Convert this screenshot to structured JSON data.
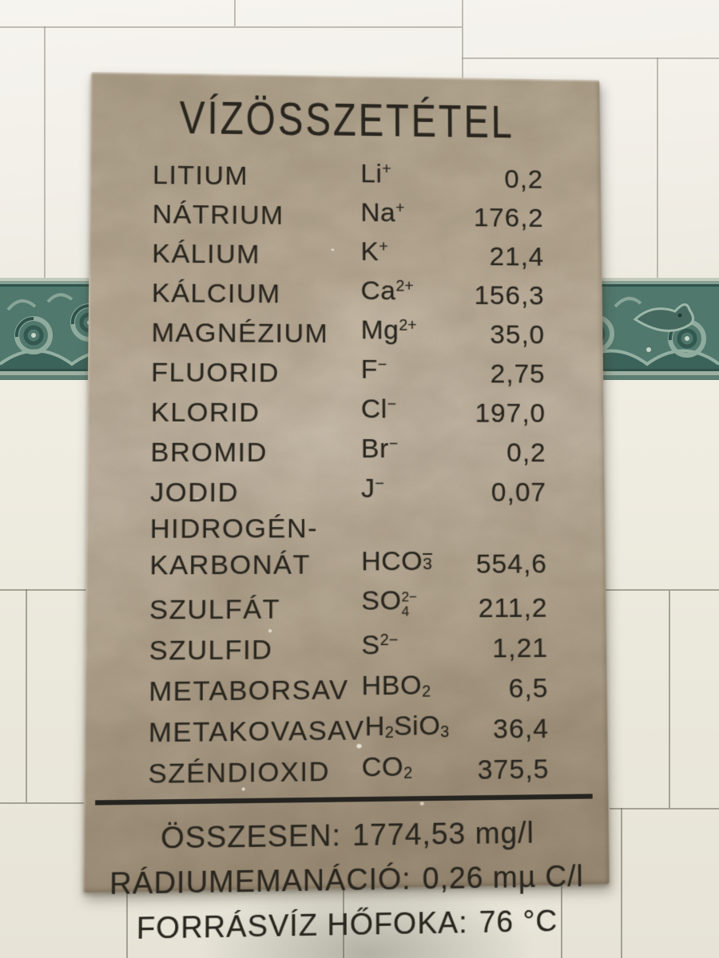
{
  "colors": {
    "tile": "#f1eee6",
    "grout": "#928f84",
    "band_green": "#50786d",
    "band_green_dark": "#30524a",
    "band_green_light": "#9db8aa",
    "plaque_stone": "#bcae99",
    "plaque_text": "#29261f"
  },
  "plaque": {
    "title": "VÍZÖSSZETÉTEL",
    "rows": [
      {
        "label": "LITIUM",
        "formula": [
          {
            "txt": "Li"
          },
          {
            "sup": "+"
          }
        ],
        "value": "0,2"
      },
      {
        "label": "NÁTRIUM",
        "formula": [
          {
            "txt": "Na"
          },
          {
            "sup": "+"
          }
        ],
        "value": "176,2"
      },
      {
        "label": "KÁLIUM",
        "formula": [
          {
            "txt": "K"
          },
          {
            "sup": "+"
          }
        ],
        "value": "21,4"
      },
      {
        "label": "KÁLCIUM",
        "formula": [
          {
            "txt": "Ca"
          },
          {
            "sup": "2+"
          }
        ],
        "value": "156,3"
      },
      {
        "label": "MAGNÉZIUM",
        "formula": [
          {
            "txt": "Mg"
          },
          {
            "sup": "2+"
          }
        ],
        "value": "35,0"
      },
      {
        "label": "FLUORID",
        "formula": [
          {
            "txt": "F"
          },
          {
            "sup": "−"
          }
        ],
        "value": "2,75"
      },
      {
        "label": "KLORID",
        "formula": [
          {
            "txt": "Cl"
          },
          {
            "sup": "−"
          }
        ],
        "value": "197,0"
      },
      {
        "label": "BROMID",
        "formula": [
          {
            "txt": "Br"
          },
          {
            "sup": "−"
          }
        ],
        "value": "0,2"
      },
      {
        "label": "JODID",
        "formula": [
          {
            "txt": "J"
          },
          {
            "sup": "−"
          }
        ],
        "value": "0,07"
      },
      {
        "label": [
          "HIDROGÉN-",
          "KARBONÁT"
        ],
        "formula": [
          {
            "txt": "HCO"
          },
          {
            "ovr": "3"
          }
        ],
        "value": "554,6"
      },
      {
        "label": "SZULFÁT",
        "formula": [
          {
            "txt": "SO"
          },
          {
            "stk": [
              "2−",
              "4"
            ]
          }
        ],
        "value": "211,2"
      },
      {
        "label": "SZULFID",
        "formula": [
          {
            "txt": "S"
          },
          {
            "sup": "2−"
          }
        ],
        "value": "1,21"
      },
      {
        "label": "METABORSAV",
        "formula": [
          {
            "txt": "HBO"
          },
          {
            "sub": "2"
          }
        ],
        "value": "6,5"
      },
      {
        "label": "METAKOVASAV",
        "formula": [
          {
            "txt": "H"
          },
          {
            "sub": "2"
          },
          {
            "txt": "SiO"
          },
          {
            "sub": "3"
          }
        ],
        "value": "36,4"
      },
      {
        "label": "SZÉNDIOXID",
        "formula": [
          {
            "txt": "CO"
          },
          {
            "sub": "2"
          }
        ],
        "value": "375,5"
      }
    ],
    "summary": [
      {
        "label": "ÖSSZESEN:",
        "value": "1774,53 mg/l"
      },
      {
        "label": "RÁDIUMEMANÁCIÓ:",
        "value": "0,26 mµ C/l"
      },
      {
        "label": "FORRÁSVÍZ HŐFOKA:",
        "value": "76 °C"
      }
    ]
  }
}
